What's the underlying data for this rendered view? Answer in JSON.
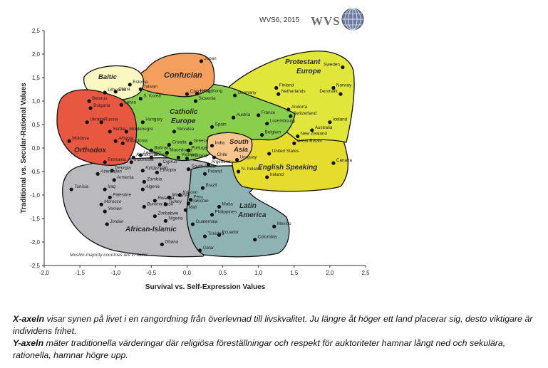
{
  "header": {
    "source_label": "WVS6, 2015",
    "logo_text": "WVS"
  },
  "note": "Muslim-majority countries are in Italics",
  "caption": {
    "x_term": "X-axeln",
    "x_text": " visar synen på livet i en rangordning från överlevnad till livskvalitet. Ju längre åt höger ett land placerar sig, desto viktigare är individens frihet.",
    "y_term": "Y-axeln",
    "y_text": " mäter traditionella värderingar där religiösa föreställningar och respekt för auktoriteter hamnar långt ned och sekulära, rationella, hamnar högre upp."
  },
  "chart_data": {
    "type": "scatter",
    "xlabel": "Survival vs. Self-Expression Values",
    "ylabel": "Traditional vs. Secular-Rational Values",
    "xlim": [
      -2.0,
      2.5
    ],
    "ylim": [
      -2.5,
      2.5
    ],
    "x_ticks": [
      "-2,0",
      "-1,5",
      "-1,0",
      "-0,5",
      "0,0",
      "0,5",
      "1,0",
      "1,5",
      "2,0",
      "2,5"
    ],
    "y_ticks": [
      "2,5",
      "2,0",
      "1,5",
      "1,0",
      "0,5",
      "0,0",
      "-0,5",
      "-1,0",
      "-1,5",
      "-2,0",
      "-2,5"
    ],
    "grid": false,
    "zones": [
      {
        "name": "Baltic",
        "color": "#fbf7c0"
      },
      {
        "name": "Confucian",
        "color": "#f49f5d"
      },
      {
        "name": "Protestant Europe",
        "color": "#e0e73a"
      },
      {
        "name": "Catholic Europe",
        "color": "#89cf4d"
      },
      {
        "name": "Orthodox",
        "color": "#e8573f"
      },
      {
        "name": "South Asia",
        "color": "#f8c58e"
      },
      {
        "name": "English Speaking",
        "color": "#e6dc2e"
      },
      {
        "name": "Latin America",
        "color": "#8fb3b3"
      },
      {
        "name": "African-Islamic",
        "color": "#b9b9be"
      }
    ],
    "points": [
      {
        "name": "Japan",
        "x": 0.2,
        "y": 1.85,
        "italic": false
      },
      {
        "name": "Hong Kong",
        "x": 0.14,
        "y": 1.16,
        "italic": false
      },
      {
        "name": "Estonia",
        "x": -0.8,
        "y": 1.35,
        "italic": false
      },
      {
        "name": "Lithuania",
        "x": -1.15,
        "y": 1.18,
        "italic": false
      },
      {
        "name": "China",
        "x": -1.0,
        "y": 1.2,
        "italic": false
      },
      {
        "name": "Latvia",
        "x": -0.92,
        "y": 0.92,
        "italic": false
      },
      {
        "name": "Taiwan",
        "x": -0.65,
        "y": 1.25,
        "italic": false
      },
      {
        "name": "S. Korea",
        "x": -0.65,
        "y": 1.05,
        "italic": false
      },
      {
        "name": "Czech Rep.",
        "x": 0.0,
        "y": 1.15,
        "italic": false
      },
      {
        "name": "Slovenia",
        "x": 0.12,
        "y": 1.0,
        "italic": false
      },
      {
        "name": "Belarus",
        "x": -1.37,
        "y": 1.0,
        "italic": false
      },
      {
        "name": "Bulgaria",
        "x": -1.35,
        "y": 0.85,
        "italic": false
      },
      {
        "name": "Ukraine",
        "x": -1.4,
        "y": 0.55,
        "italic": false
      },
      {
        "name": "Russia",
        "x": -1.2,
        "y": 0.55,
        "italic": false
      },
      {
        "name": "Serbia",
        "x": -1.08,
        "y": 0.35,
        "italic": false
      },
      {
        "name": "Moldova",
        "x": -1.65,
        "y": 0.15,
        "italic": false
      },
      {
        "name": "Albania",
        "x": -1.0,
        "y": 0.15,
        "italic": true
      },
      {
        "name": "Montenegro",
        "x": -0.85,
        "y": 0.35,
        "italic": false
      },
      {
        "name": "Macedonia",
        "x": -0.9,
        "y": 0.1,
        "italic": false
      },
      {
        "name": "Romania",
        "x": -1.15,
        "y": -0.3,
        "italic": false
      },
      {
        "name": "Georgia",
        "x": -1.05,
        "y": -0.48,
        "italic": false
      },
      {
        "name": "Armenia",
        "x": -1.02,
        "y": -0.68,
        "italic": false
      },
      {
        "name": "Azerbaijan",
        "x": -1.25,
        "y": -0.55,
        "italic": true
      },
      {
        "name": "Hungary",
        "x": -0.62,
        "y": 0.55,
        "italic": false
      },
      {
        "name": "Slovakia",
        "x": -0.18,
        "y": 0.35,
        "italic": false
      },
      {
        "name": "Croatia",
        "x": -0.25,
        "y": 0.07,
        "italic": false
      },
      {
        "name": "Bahrain",
        "x": -0.5,
        "y": -0.05,
        "italic": true
      },
      {
        "name": "Lebanon",
        "x": -0.65,
        "y": -0.15,
        "italic": true
      },
      {
        "name": "Kazakhstan",
        "x": -0.75,
        "y": -0.2,
        "italic": true
      },
      {
        "name": "Bosnia",
        "x": -0.5,
        "y": -0.2,
        "italic": true
      },
      {
        "name": "Macedonia ",
        "x": -0.28,
        "y": -0.1,
        "italic": false
      },
      {
        "name": "Indonesia",
        "x": -0.78,
        "y": -0.3,
        "italic": true
      },
      {
        "name": "Vietnam",
        "x": -0.12,
        "y": -0.2,
        "italic": false
      },
      {
        "name": "Thailand",
        "x": 0.0,
        "y": -0.22,
        "italic": false
      },
      {
        "name": "Cyprus",
        "x": -0.38,
        "y": -0.35,
        "italic": false
      },
      {
        "name": "Kyrgyzstan",
        "x": -0.62,
        "y": -0.48,
        "italic": true
      },
      {
        "name": "Ethiopia",
        "x": -0.42,
        "y": -0.52,
        "italic": false
      },
      {
        "name": "Zambia",
        "x": -0.6,
        "y": -0.72,
        "italic": false
      },
      {
        "name": "Algeria",
        "x": -0.62,
        "y": -0.88,
        "italic": true
      },
      {
        "name": "Iraq",
        "x": -1.15,
        "y": -0.88,
        "italic": true
      },
      {
        "name": "Tunisia",
        "x": -1.62,
        "y": -0.88,
        "italic": true
      },
      {
        "name": "Palestine",
        "x": -1.08,
        "y": -1.05,
        "italic": true
      },
      {
        "name": "Morocco",
        "x": -1.2,
        "y": -1.2,
        "italic": true
      },
      {
        "name": "Yemen",
        "x": -1.15,
        "y": -1.35,
        "italic": true
      },
      {
        "name": "Jordan",
        "x": -1.12,
        "y": -1.62,
        "italic": true
      },
      {
        "name": "Rwanda",
        "x": -0.45,
        "y": -1.12,
        "italic": false
      },
      {
        "name": "Burkina Faso",
        "x": -0.6,
        "y": -1.25,
        "italic": true
      },
      {
        "name": "Malaysia",
        "x": -0.25,
        "y": -1.05,
        "italic": true
      },
      {
        "name": "Turkey",
        "x": -0.3,
        "y": -1.2,
        "italic": true
      },
      {
        "name": "Kosovo",
        "x": -0.1,
        "y": -1.0,
        "italic": true
      },
      {
        "name": "Pakistan",
        "x": 0.02,
        "y": -1.18,
        "italic": true
      },
      {
        "name": "Mali",
        "x": -0.02,
        "y": -1.32,
        "italic": true
      },
      {
        "name": "Zimbabwe",
        "x": -0.45,
        "y": -1.45,
        "italic": false
      },
      {
        "name": "Nigeria",
        "x": -0.3,
        "y": -1.55,
        "italic": false
      },
      {
        "name": "Ghana",
        "x": -0.35,
        "y": -2.05,
        "italic": false
      },
      {
        "name": "Qatar",
        "x": 0.18,
        "y": -2.18,
        "italic": true
      },
      {
        "name": "Peru",
        "x": 0.05,
        "y": -1.1,
        "italic": false
      },
      {
        "name": "Brazil",
        "x": 0.22,
        "y": -0.85,
        "italic": false
      },
      {
        "name": "Philippines",
        "x": 0.35,
        "y": -1.42,
        "italic": false
      },
      {
        "name": "Malta",
        "x": 0.45,
        "y": -1.25,
        "italic": false
      },
      {
        "name": "Guatemala",
        "x": 0.08,
        "y": -1.62,
        "italic": false
      },
      {
        "name": "Ecuador",
        "x": 0.45,
        "y": -1.85,
        "italic": false
      },
      {
        "name": "Trinidad",
        "x": 0.25,
        "y": -1.88,
        "italic": false
      },
      {
        "name": "Colombia",
        "x": 0.95,
        "y": -1.95,
        "italic": false
      },
      {
        "name": "Mexico",
        "x": 1.22,
        "y": -1.67,
        "italic": false
      },
      {
        "name": "South Africa",
        "x": 0.02,
        "y": -0.45,
        "italic": false
      },
      {
        "name": "Poland",
        "x": 0.25,
        "y": -0.55,
        "italic": false
      },
      {
        "name": "Argentina",
        "x": 0.3,
        "y": -0.35,
        "italic": false
      },
      {
        "name": "Chile",
        "x": 0.38,
        "y": -0.2,
        "italic": false
      },
      {
        "name": "Uruguay",
        "x": 0.7,
        "y": -0.25,
        "italic": false
      },
      {
        "name": "India",
        "x": 0.35,
        "y": 0.05,
        "italic": false
      },
      {
        "name": "Portugal",
        "x": 0.02,
        "y": -0.05,
        "italic": false
      },
      {
        "name": "Greece",
        "x": 0.05,
        "y": 0.1,
        "italic": false
      },
      {
        "name": "Spain",
        "x": 0.35,
        "y": 0.45,
        "italic": false
      },
      {
        "name": "Austria",
        "x": 0.65,
        "y": 0.65,
        "italic": false
      },
      {
        "name": "Germany",
        "x": 0.67,
        "y": 1.12,
        "italic": false
      },
      {
        "name": "France",
        "x": 1.0,
        "y": 0.7,
        "italic": false
      },
      {
        "name": "Luxembourg",
        "x": 1.12,
        "y": 0.52,
        "italic": false
      },
      {
        "name": "Belgium",
        "x": 1.05,
        "y": 0.28,
        "italic": false
      },
      {
        "name": "Andorra",
        "x": 1.42,
        "y": 0.82,
        "italic": false
      },
      {
        "name": "Switzerland",
        "x": 1.45,
        "y": 0.68,
        "italic": false
      },
      {
        "name": "Finland",
        "x": 1.25,
        "y": 1.28,
        "italic": false
      },
      {
        "name": "Netherlands",
        "x": 1.28,
        "y": 1.15,
        "italic": false
      },
      {
        "name": "Sweden",
        "x": 2.18,
        "y": 1.72,
        "italic": false
      },
      {
        "name": "Norway",
        "x": 2.05,
        "y": 1.28,
        "italic": false
      },
      {
        "name": "Denmark",
        "x": 2.15,
        "y": 1.15,
        "italic": false
      },
      {
        "name": "Iceland",
        "x": 2.0,
        "y": 0.55,
        "italic": false
      },
      {
        "name": "Australia",
        "x": 1.75,
        "y": 0.38,
        "italic": false
      },
      {
        "name": "New Zealand",
        "x": 1.55,
        "y": 0.25,
        "italic": false
      },
      {
        "name": "Great Britain",
        "x": 1.5,
        "y": 0.1,
        "italic": false
      },
      {
        "name": "United States",
        "x": 1.15,
        "y": -0.12,
        "italic": false
      },
      {
        "name": "Canada",
        "x": 2.05,
        "y": -0.32,
        "italic": false
      },
      {
        "name": "N. Ireland",
        "x": 0.72,
        "y": -0.5,
        "italic": false
      },
      {
        "name": "Ireland",
        "x": 1.12,
        "y": -0.62,
        "italic": false
      }
    ]
  }
}
